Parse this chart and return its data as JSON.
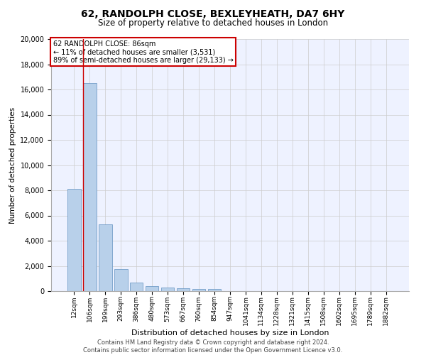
{
  "title1": "62, RANDOLPH CLOSE, BEXLEYHEATH, DA7 6HY",
  "title2": "Size of property relative to detached houses in London",
  "xlabel": "Distribution of detached houses by size in London",
  "ylabel": "Number of detached properties",
  "categories": [
    "12sqm",
    "106sqm",
    "199sqm",
    "293sqm",
    "386sqm",
    "480sqm",
    "573sqm",
    "667sqm",
    "760sqm",
    "854sqm",
    "947sqm",
    "1041sqm",
    "1134sqm",
    "1228sqm",
    "1321sqm",
    "1415sqm",
    "1508sqm",
    "1602sqm",
    "1695sqm",
    "1789sqm",
    "1882sqm"
  ],
  "values": [
    8100,
    16500,
    5300,
    1750,
    650,
    380,
    280,
    200,
    170,
    150,
    0,
    0,
    0,
    0,
    0,
    0,
    0,
    0,
    0,
    0,
    0
  ],
  "bar_color": "#b8d0ea",
  "bar_edge_color": "#6090c0",
  "annotation_box_text": "62 RANDOLPH CLOSE: 86sqm\n← 11% of detached houses are smaller (3,531)\n89% of semi-detached houses are larger (29,133) →",
  "annotation_box_color": "#ffffff",
  "annotation_box_edge_color": "#cc0000",
  "vline_color": "#cc0000",
  "vline_x": 0.6,
  "ylim": [
    0,
    20000
  ],
  "yticks": [
    0,
    2000,
    4000,
    6000,
    8000,
    10000,
    12000,
    14000,
    16000,
    18000,
    20000
  ],
  "grid_color": "#cccccc",
  "background_color": "#eef2ff",
  "footer_text": "Contains HM Land Registry data © Crown copyright and database right 2024.\nContains public sector information licensed under the Open Government Licence v3.0.",
  "title1_fontsize": 10,
  "title2_fontsize": 8.5,
  "xlabel_fontsize": 8,
  "ylabel_fontsize": 7.5,
  "tick_fontsize": 6.5,
  "annot_fontsize": 7,
  "footer_fontsize": 6
}
